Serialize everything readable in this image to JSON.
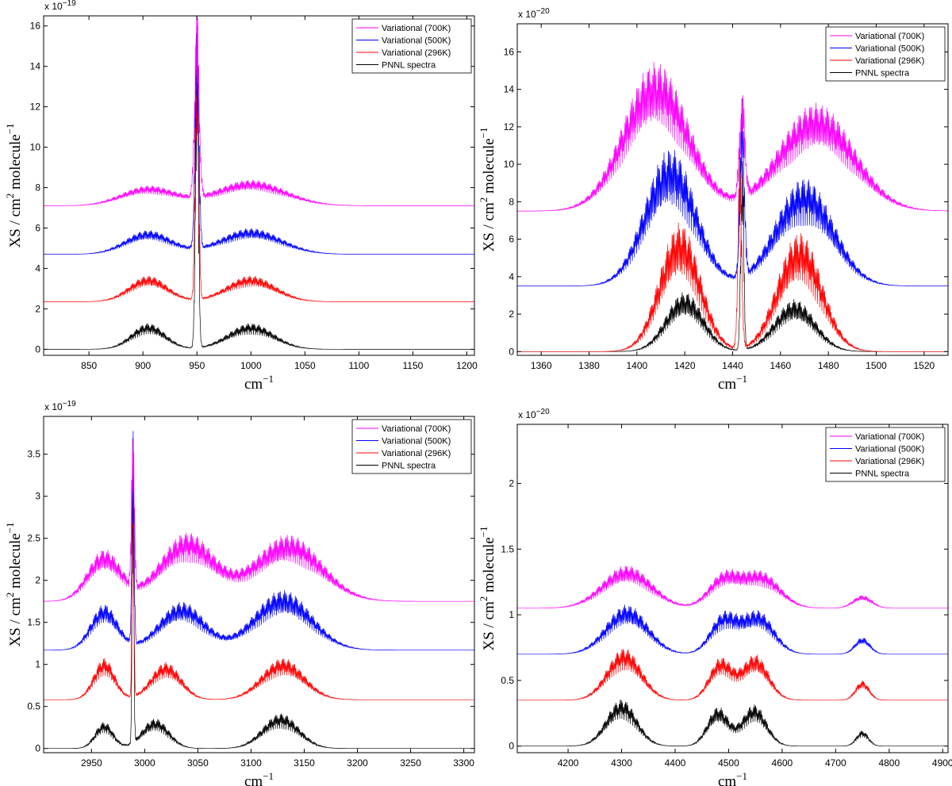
{
  "chart_data": [
    {
      "type": "line",
      "panel": "top-left",
      "xlabel": "cm",
      "xlabel_sup": "−1",
      "ylabel": "XS / cm",
      "ylabel_sup": "2",
      "ylabel_tail": " molecule",
      "ylabel_tail_sup": "−1",
      "exponent_base": "x 10",
      "exponent_power": "−19",
      "xlim": [
        808,
        1207
      ],
      "ylim": [
        -0.3,
        16.5
      ],
      "xticks": [
        "850",
        "900",
        "950",
        "1000",
        "1050",
        "1100",
        "1150",
        "1200"
      ],
      "yticks": [
        "0",
        "2",
        "4",
        "6",
        "8",
        "10",
        "12",
        "14",
        "16"
      ],
      "legend_position": "top-right",
      "series": [
        {
          "name": "Variational (700K)",
          "color": "#ff00ff",
          "offset": 7.1,
          "peaks": [
            [
              905,
              1.0,
              35
            ],
            [
              1000,
              1.3,
              45
            ],
            [
              950,
              9.4,
              3
            ]
          ]
        },
        {
          "name": "Variational (500K)",
          "color": "#0000ff",
          "offset": 4.7,
          "peaks": [
            [
              905,
              1.2,
              30
            ],
            [
              1000,
              1.3,
              40
            ],
            [
              950,
              11.9,
              2.5
            ]
          ]
        },
        {
          "name": "Variational (296K)",
          "color": "#ff0000",
          "offset": 2.35,
          "peaks": [
            [
              905,
              1.3,
              25
            ],
            [
              1000,
              1.3,
              32
            ],
            [
              950,
              14.2,
              2.2
            ]
          ]
        },
        {
          "name": "PNNL spectra",
          "color": "#000000",
          "offset": 0.0,
          "peaks": [
            [
              905,
              1.3,
              22
            ],
            [
              1000,
              1.3,
              30
            ],
            [
              950,
              16.3,
              2
            ]
          ]
        }
      ]
    },
    {
      "type": "line",
      "panel": "top-right",
      "xlabel": "cm",
      "xlabel_sup": "−1",
      "ylabel": "XS / cm",
      "ylabel_sup": "2",
      "ylabel_tail": " molecule",
      "ylabel_tail_sup": "−1",
      "exponent_base": "x 10",
      "exponent_power": "−20",
      "xlim": [
        1350,
        1530
      ],
      "ylim": [
        -0.2,
        17.5
      ],
      "xticks": [
        "1360",
        "1380",
        "1400",
        "1420",
        "1440",
        "1460",
        "1480",
        "1500",
        "1520"
      ],
      "yticks": [
        "0",
        "2",
        "4",
        "6",
        "8",
        "10",
        "12",
        "14",
        "16"
      ],
      "legend_position": "top-right",
      "series": [
        {
          "name": "Variational (700K)",
          "color": "#ff00ff",
          "offset": 7.5,
          "peaks": [
            [
              1408,
              8.0,
              19
            ],
            [
              1475,
              5.8,
              22
            ],
            [
              1444,
              5.6,
              1.6
            ]
          ]
        },
        {
          "name": "Variational (500K)",
          "color": "#0000ff",
          "offset": 3.5,
          "peaks": [
            [
              1414,
              7.4,
              15
            ],
            [
              1470,
              5.8,
              17
            ],
            [
              1444,
              9.6,
              1.3
            ]
          ]
        },
        {
          "name": "Variational (296K)",
          "color": "#ff0000",
          "offset": 0.0,
          "peaks": [
            [
              1418,
              6.9,
              12
            ],
            [
              1468,
              6.4,
              13
            ],
            [
              1443,
              10.9,
              1.1
            ]
          ]
        },
        {
          "name": "PNNL spectra",
          "color": "#000000",
          "offset": 0.0,
          "peaks": [
            [
              1420,
              3.2,
              11
            ],
            [
              1466,
              2.8,
              12
            ],
            [
              1444,
              11.2,
              0.9
            ]
          ]
        }
      ]
    },
    {
      "type": "line",
      "panel": "bottom-left",
      "xlabel": "cm",
      "xlabel_sup": "−1",
      "ylabel": "XS / cm",
      "ylabel_sup": "2",
      "ylabel_tail": " molecule",
      "ylabel_tail_sup": "−1",
      "exponent_base": "x 10",
      "exponent_power": "−19",
      "xlim": [
        2905,
        3310
      ],
      "ylim": [
        -0.05,
        3.95
      ],
      "xticks": [
        "2950",
        "3000",
        "3050",
        "3100",
        "3150",
        "3200",
        "3250",
        "3300"
      ],
      "yticks": [
        "0",
        "0.5",
        "1",
        "1.5",
        "2",
        "2.5",
        "3",
        "3.5"
      ],
      "legend_position": "top-right",
      "series": [
        {
          "name": "Variational (700K)",
          "color": "#ff00ff",
          "offset": 1.75,
          "peaks": [
            [
              2962,
              0.62,
              22
            ],
            [
              3040,
              0.82,
              36
            ],
            [
              3135,
              0.8,
              44
            ],
            [
              2989,
              2.1,
              1.8
            ]
          ]
        },
        {
          "name": "Variational (500K)",
          "color": "#0000ff",
          "offset": 1.17,
          "peaks": [
            [
              2962,
              0.55,
              18
            ],
            [
              3035,
              0.58,
              30
            ],
            [
              3130,
              0.72,
              38
            ],
            [
              2989,
              2.6,
              1.5
            ]
          ]
        },
        {
          "name": "Variational (296K)",
          "color": "#ff0000",
          "offset": 0.58,
          "peaks": [
            [
              2962,
              0.5,
              14
            ],
            [
              3020,
              0.45,
              20
            ],
            [
              3130,
              0.5,
              28
            ],
            [
              2989,
              3.1,
              1.2
            ]
          ]
        },
        {
          "name": "PNNL spectra",
          "color": "#000000",
          "offset": 0.0,
          "peaks": [
            [
              2962,
              0.32,
              12
            ],
            [
              3010,
              0.36,
              18
            ],
            [
              3128,
              0.42,
              24
            ],
            [
              2989,
              3.8,
              1.1
            ]
          ]
        }
      ]
    },
    {
      "type": "line",
      "panel": "bottom-right",
      "xlabel": "cm",
      "xlabel_sup": "−1",
      "ylabel": "XS / cm",
      "ylabel_sup": "2",
      "ylabel_tail": " molecule",
      "ylabel_tail_sup": "−1",
      "exponent_base": "x 10",
      "exponent_power": "−20",
      "xlim": [
        4105,
        4910
      ],
      "ylim": [
        -0.05,
        2.45
      ],
      "xticks": [
        "4200",
        "4300",
        "4400",
        "4500",
        "4600",
        "4700",
        "4800",
        "4900"
      ],
      "yticks": [
        "0",
        "0.5",
        "1",
        "1.5",
        "2"
      ],
      "legend_position": "top-right",
      "series": [
        {
          "name": "Variational (700K)",
          "color": "#ff00ff",
          "offset": 1.05,
          "peaks": [
            [
              4310,
              0.33,
              65
            ],
            [
              4490,
              0.25,
              40
            ],
            [
              4560,
              0.28,
              50
            ],
            [
              4750,
              0.1,
              25
            ]
          ]
        },
        {
          "name": "Variational (500K)",
          "color": "#0000ff",
          "offset": 0.7,
          "peaks": [
            [
              4310,
              0.38,
              55
            ],
            [
              4490,
              0.3,
              35
            ],
            [
              4555,
              0.33,
              42
            ],
            [
              4750,
              0.13,
              20
            ]
          ]
        },
        {
          "name": "Variational (296K)",
          "color": "#ff0000",
          "offset": 0.35,
          "peaks": [
            [
              4305,
              0.4,
              45
            ],
            [
              4485,
              0.32,
              30
            ],
            [
              4550,
              0.35,
              35
            ],
            [
              4750,
              0.15,
              18
            ]
          ]
        },
        {
          "name": "PNNL spectra",
          "color": "#000000",
          "offset": 0.0,
          "peaks": [
            [
              4300,
              0.36,
              40
            ],
            [
              4480,
              0.3,
              28
            ],
            [
              4548,
              0.32,
              32
            ],
            [
              4750,
              0.12,
              16
            ]
          ]
        }
      ]
    }
  ]
}
